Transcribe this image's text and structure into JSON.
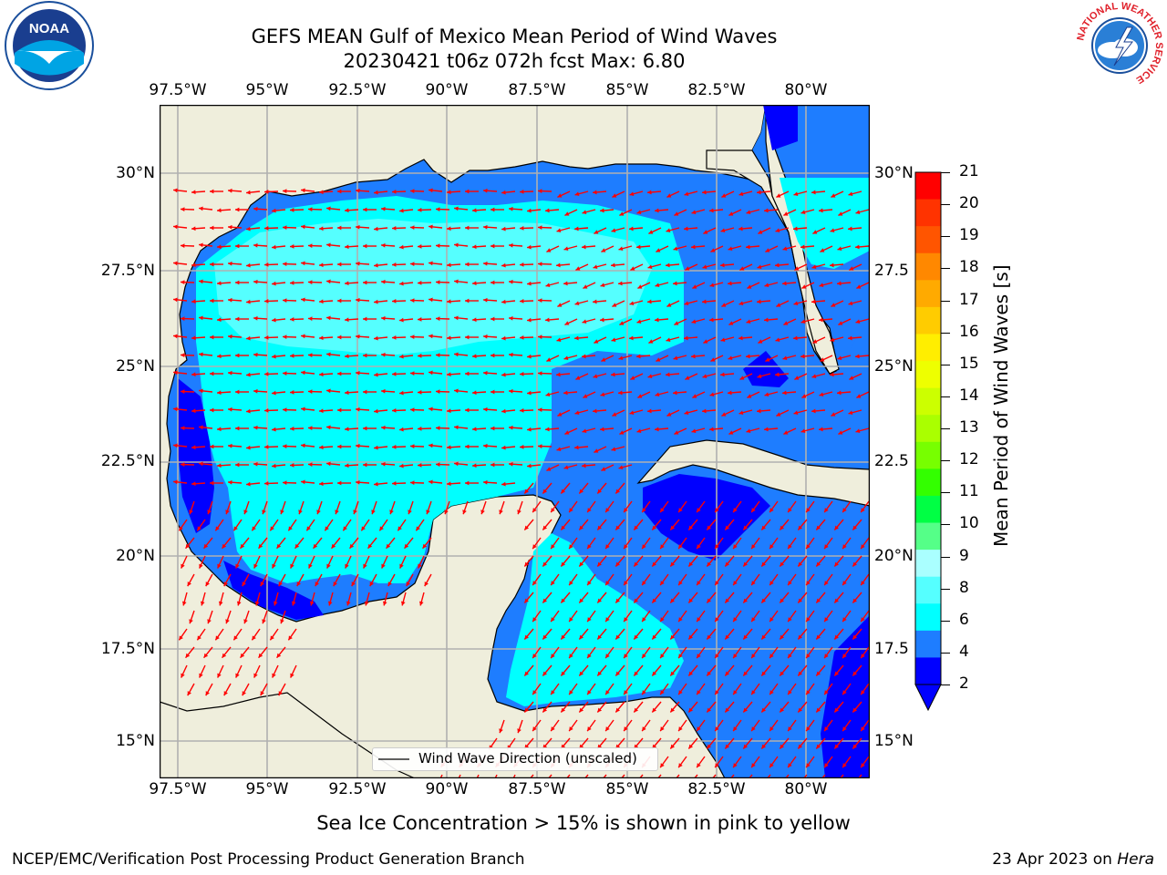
{
  "header": {
    "title": "GEFS MEAN Gulf of Mexico Mean Period of Wind Waves",
    "subtitle": "20230421 t06z 072h fcst   Max: 6.80"
  },
  "logos": {
    "noaa": {
      "center_text": "NOAA"
    },
    "nws": {
      "ring_text": "NATIONAL WEATHER SERVICE"
    }
  },
  "map": {
    "lon_labels": [
      "97.5°W",
      "95°W",
      "92.5°W",
      "90°W",
      "87.5°W",
      "85°W",
      "82.5°W",
      "80°W"
    ],
    "lat_labels_left": [
      "30°N",
      "27.5°N",
      "25°N",
      "22.5°N",
      "20°N",
      "17.5°N",
      "15°N"
    ],
    "lat_labels_right": [
      "30°N",
      "27.5",
      "25°N",
      "22.5",
      "20°N",
      "17.5",
      "15°N"
    ],
    "colors": {
      "land": "#efeedc",
      "ocean_low": "#0000ff",
      "ocean_2_4": "#1e7dff",
      "ocean_4_6": "#00ffff",
      "ocean_6_8": "#55ffff",
      "vector": "#ff0000",
      "grid": "#b0b0b0"
    },
    "legend_label": "Wind Wave Direction (unscaled)"
  },
  "colorbar": {
    "label": "Mean Period of Wind Waves [s]",
    "ticks": [
      "21",
      "20",
      "19",
      "18",
      "17",
      "16",
      "15",
      "14",
      "13",
      "12",
      "11",
      "10",
      "9",
      "8",
      "6",
      "4",
      "2"
    ],
    "colors": [
      "#ff0000",
      "#ff3300",
      "#ff5500",
      "#ff8800",
      "#ffaa00",
      "#ffcc00",
      "#ffee00",
      "#eeff00",
      "#ccff00",
      "#aaff00",
      "#77ff00",
      "#33ff00",
      "#00ff44",
      "#55ff88",
      "#aaffff",
      "#55ffff",
      "#00ffff",
      "#1e7dff",
      "#0000ff"
    ]
  },
  "footer": {
    "caption": "Sea Ice Concentration > 15% is shown in pink to yellow",
    "left": "NCEP/EMC/Verification Post Processing Product Generation Branch",
    "right_prefix": "23 Apr 2023 on ",
    "right_italic": "Hera"
  }
}
